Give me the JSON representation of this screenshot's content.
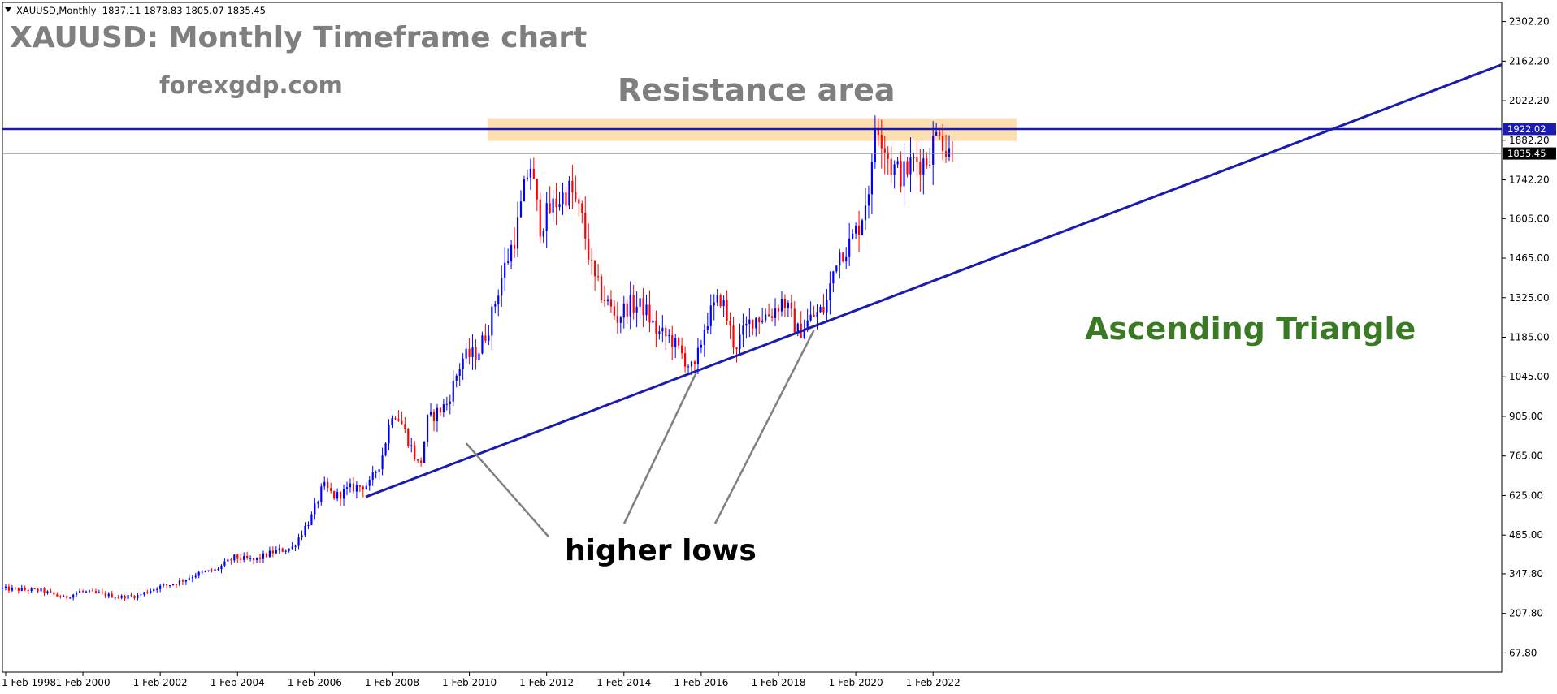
{
  "header": {
    "info_line": "XAUUSD,Monthly  1837.11 1878.83 1805.07 1835.45"
  },
  "annotations": {
    "title": "XAUUSD: Monthly Timeframe chart",
    "website": "forexgdp.com",
    "resistance": "Resistance area",
    "pattern": "Ascending Triangle",
    "lows": "higher lows"
  },
  "price_badges": {
    "resistance": "1922.02",
    "current": "1835.45"
  },
  "colors": {
    "bull": "#0000ff",
    "bear": "#ff0000",
    "trendline": "#1b1bb0",
    "resistance_zone": "#fcd9a3",
    "pattern_text": "#3a7a24"
  },
  "chart_data": {
    "type": "candlestick",
    "symbol": "XAUUSD",
    "timeframe": "Monthly",
    "last_bar": {
      "open": 1837.11,
      "high": 1878.83,
      "low": 1805.07,
      "close": 1835.45
    },
    "y_ticks": [
      "2302.20",
      "2162.20",
      "2022.20",
      "1882.20",
      "1742.20",
      "1605.00",
      "1465.00",
      "1325.00",
      "1185.00",
      "1045.00",
      "905.00",
      "765.00",
      "625.00",
      "485.00",
      "347.80",
      "207.80",
      "67.80"
    ],
    "x_ticks": [
      "1 Feb 1998",
      "1 Feb 2000",
      "1 Feb 2002",
      "1 Feb 2004",
      "1 Feb 2006",
      "1 Feb 2008",
      "1 Feb 2010",
      "1 Feb 2012",
      "1 Feb 2014",
      "1 Feb 2016",
      "1 Feb 2018",
      "1 Feb 2020",
      "1 Feb 2022"
    ],
    "ylim": [
      0,
      2370
    ],
    "xlim": [
      1998.0,
      2036.8
    ],
    "close_path": [
      [
        1998.0,
        295
      ],
      [
        1999.0,
        288
      ],
      [
        1999.6,
        262
      ],
      [
        2000.0,
        285
      ],
      [
        2000.5,
        278
      ],
      [
        2001.0,
        265
      ],
      [
        2001.5,
        270
      ],
      [
        2002.0,
        300
      ],
      [
        2002.5,
        315
      ],
      [
        2003.0,
        345
      ],
      [
        2003.5,
        360
      ],
      [
        2004.0,
        405
      ],
      [
        2004.5,
        395
      ],
      [
        2005.0,
        425
      ],
      [
        2005.5,
        440
      ],
      [
        2006.0,
        550
      ],
      [
        2006.3,
        660
      ],
      [
        2006.6,
        620
      ],
      [
        2007.0,
        650
      ],
      [
        2007.5,
        665
      ],
      [
        2007.8,
        750
      ],
      [
        2008.1,
        930
      ],
      [
        2008.3,
        890
      ],
      [
        2008.8,
        720
      ],
      [
        2009.0,
        890
      ],
      [
        2009.5,
        950
      ],
      [
        2009.9,
        1110
      ],
      [
        2010.3,
        1130
      ],
      [
        2010.6,
        1230
      ],
      [
        2010.9,
        1390
      ],
      [
        2011.3,
        1560
      ],
      [
        2011.65,
        1810
      ],
      [
        2011.9,
        1580
      ],
      [
        2012.3,
        1660
      ],
      [
        2012.7,
        1710
      ],
      [
        2013.0,
        1600
      ],
      [
        2013.3,
        1390
      ],
      [
        2013.6,
        1320
      ],
      [
        2013.9,
        1250
      ],
      [
        2014.2,
        1300
      ],
      [
        2014.6,
        1290
      ],
      [
        2014.95,
        1200
      ],
      [
        2015.3,
        1180
      ],
      [
        2015.9,
        1060
      ],
      [
        2016.2,
        1240
      ],
      [
        2016.6,
        1330
      ],
      [
        2016.95,
        1150
      ],
      [
        2017.4,
        1250
      ],
      [
        2017.9,
        1270
      ],
      [
        2018.2,
        1320
      ],
      [
        2018.6,
        1200
      ],
      [
        2018.9,
        1250
      ],
      [
        2019.3,
        1290
      ],
      [
        2019.6,
        1480
      ],
      [
        2019.9,
        1510
      ],
      [
        2020.2,
        1590
      ],
      [
        2020.5,
        1770
      ],
      [
        2020.6,
        1970
      ],
      [
        2020.8,
        1880
      ],
      [
        2021.0,
        1790
      ],
      [
        2021.3,
        1760
      ],
      [
        2021.6,
        1810
      ],
      [
        2021.9,
        1810
      ],
      [
        2022.2,
        1910
      ],
      [
        2022.25,
        1940
      ],
      [
        2022.4,
        1840
      ],
      [
        2022.6,
        1835.45
      ]
    ],
    "resistance_level": 1922.02,
    "current_price": 1835.45,
    "resistance_zone": {
      "from_date": 2010.55,
      "to_date": 2024.25,
      "low": 1880,
      "high": 1960
    },
    "ascending_trendline": [
      [
        2007.4,
        620
      ],
      [
        2036.8,
        2150
      ]
    ],
    "higher_low_points": [
      [
        2010.0,
        810
      ],
      [
        2015.95,
        1058
      ],
      [
        2019.0,
        1210
      ]
    ],
    "higher_low_label_anchor": [
      2013.2,
      485
    ]
  }
}
